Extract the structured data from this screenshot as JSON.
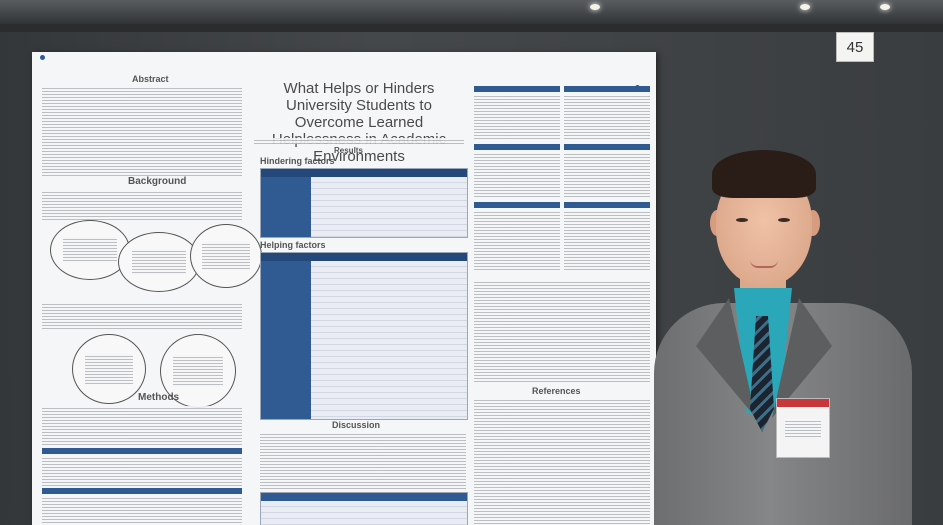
{
  "booth": {
    "number": "45"
  },
  "poster": {
    "title": "What Helps or Hinders University Students to Overcome Learned Helplessness in Academic Environments",
    "sections": {
      "abstract": "Abstract",
      "background": "Background",
      "methods": "Methods",
      "hindering": "Hindering factors",
      "helping": "Helping factors",
      "results": "Results",
      "discussion": "Discussion",
      "references": "References"
    }
  },
  "colors": {
    "table_header": "#24487a",
    "table_column": "#2f5a92",
    "shirt": "#2aa7b8",
    "badge_strip": "#c8373a"
  }
}
